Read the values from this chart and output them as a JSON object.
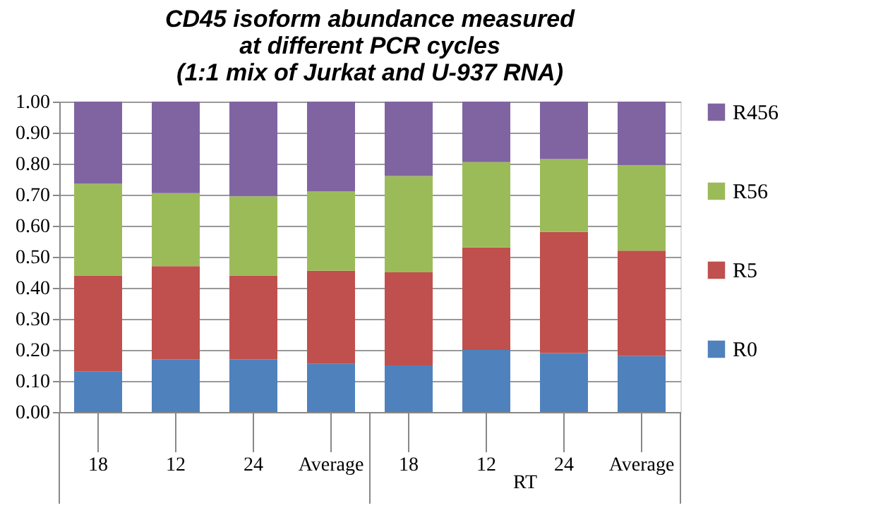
{
  "chart_data": {
    "type": "bar",
    "stacked": true,
    "title": [
      "CD45 isoform abundance measured",
      "at different PCR cycles",
      "(1:1 mix of Jurkat and U-937 RNA)"
    ],
    "categories": [
      "18",
      "12",
      "24",
      "Average",
      "18",
      "12",
      "24",
      "Average"
    ],
    "series": [
      {
        "name": "R0",
        "color": "#4f81bd",
        "values": [
          0.13,
          0.17,
          0.17,
          0.155,
          0.15,
          0.2,
          0.19,
          0.18
        ]
      },
      {
        "name": "R5",
        "color": "#c0504d",
        "values": [
          0.31,
          0.3,
          0.27,
          0.3,
          0.3,
          0.33,
          0.39,
          0.34
        ]
      },
      {
        "name": "R56",
        "color": "#9bbb59",
        "values": [
          0.295,
          0.235,
          0.255,
          0.255,
          0.31,
          0.275,
          0.235,
          0.275
        ]
      },
      {
        "name": "R456",
        "color": "#8064a2",
        "values": [
          0.265,
          0.295,
          0.305,
          0.29,
          0.24,
          0.195,
          0.185,
          0.205
        ]
      }
    ],
    "annotations": [
      "RT"
    ],
    "ylim": [
      0,
      1
    ],
    "yticks": [
      {
        "value": 0,
        "label": "0.00"
      },
      {
        "value": 0.1,
        "label": "0.10"
      },
      {
        "value": 0.2,
        "label": "0.20"
      },
      {
        "value": 0.3,
        "label": "0.30"
      },
      {
        "value": 0.4,
        "label": "0.40"
      },
      {
        "value": 0.5,
        "label": "0.50"
      },
      {
        "value": 0.6,
        "label": "0.60"
      },
      {
        "value": 0.7,
        "label": "0.70"
      },
      {
        "value": 0.8,
        "label": "0.80"
      },
      {
        "value": 0.9,
        "label": "0.90"
      },
      {
        "value": 1,
        "label": "1.00"
      }
    ],
    "grid": "y",
    "legend": "right"
  }
}
